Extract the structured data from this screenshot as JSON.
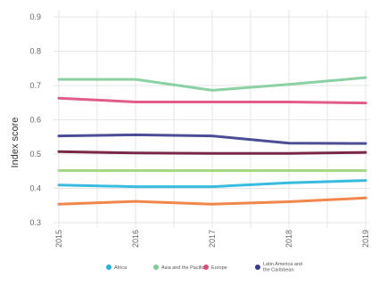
{
  "chart_data": {
    "type": "line",
    "ylabel": "Index score",
    "xlabel": "",
    "x": [
      "2015",
      "2016",
      "2017",
      "2018",
      "2019"
    ],
    "y_ticks": [
      "0.3",
      "0.4",
      "0.5",
      "0.6",
      "0.7",
      "0.8",
      "0.9"
    ],
    "ylim": [
      0.3,
      0.9
    ],
    "grid": true,
    "legend_position": "bottom",
    "series": [
      {
        "id": "asia",
        "name": "Asia and the Pacific",
        "color": "#7fcc9a",
        "values": [
          0.718,
          0.718,
          0.686,
          0.703,
          0.723
        ]
      },
      {
        "id": "europe",
        "name": "Europe",
        "color": "#de4a7c",
        "values": [
          0.663,
          0.652,
          0.652,
          0.652,
          0.649
        ]
      },
      {
        "id": "latam",
        "name": "Latin America and the Caribbean",
        "color": "#393a8c",
        "values": [
          0.553,
          0.556,
          0.553,
          0.532,
          0.531
        ]
      },
      {
        "id": "darkred",
        "name": "",
        "color": "#6b1034",
        "values": [
          0.507,
          0.503,
          0.502,
          0.502,
          0.505
        ]
      },
      {
        "id": "green",
        "name": "",
        "color": "#9fd47a",
        "values": [
          0.452,
          0.452,
          0.452,
          0.452,
          0.452
        ]
      },
      {
        "id": "africa",
        "name": "Africa",
        "color": "#23b4dc",
        "values": [
          0.41,
          0.405,
          0.405,
          0.416,
          0.423
        ]
      },
      {
        "id": "orange",
        "name": "",
        "color": "#ef7a3a",
        "values": [
          0.354,
          0.362,
          0.354,
          0.361,
          0.372
        ]
      }
    ],
    "legend": [
      {
        "label": "Africa",
        "color": "#23b4dc"
      },
      {
        "label": "Asia and the Pacific",
        "color": "#7fcc9a"
      },
      {
        "label": "Europe",
        "color": "#de4a7c"
      },
      {
        "label_lines": [
          "Latin America and",
          "the Caribbean"
        ],
        "color": "#393a8c"
      }
    ]
  }
}
